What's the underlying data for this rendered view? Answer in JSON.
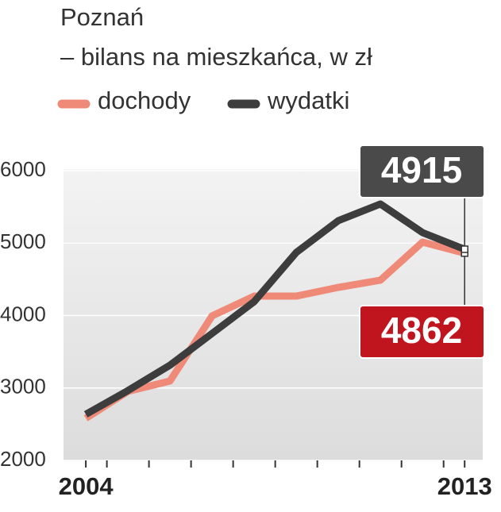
{
  "chart_data": {
    "type": "line",
    "title": "Poznań",
    "subtitle": "– bilans na mieszkańca, w zł",
    "x": [
      2004,
      2005,
      2006,
      2007,
      2008,
      2009,
      2010,
      2011,
      2012,
      2013
    ],
    "series": [
      {
        "name": "dochody",
        "color": "#f08a78",
        "values": [
          2581,
          2953,
          3096,
          3995,
          4268,
          4268,
          4389,
          4488,
          5014,
          4862
        ],
        "label_color": "#c0151f"
      },
      {
        "name": "wydatki",
        "color": "#3d3d3d",
        "values": [
          2636,
          2964,
          3315,
          3753,
          4192,
          4871,
          5310,
          5540,
          5145,
          4915
        ],
        "label_color": "#4a4a4a"
      }
    ],
    "xlim": [
      2003.47,
      2013.43
    ],
    "xticks": [
      2004,
      2013
    ],
    "ylim": [
      2000,
      6000
    ],
    "yticks": [
      2000,
      3000,
      4000,
      5000,
      6000
    ],
    "grid": true
  }
}
